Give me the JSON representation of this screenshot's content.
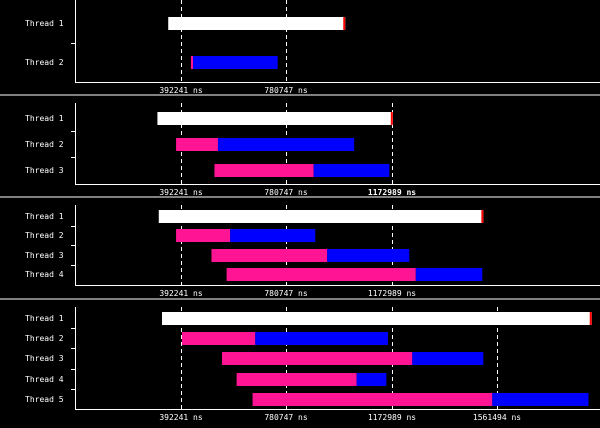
{
  "colors": {
    "background": "#000000",
    "axis": "#ffffff",
    "main_thread_bar": "#ffffff",
    "pink_segment": "#ff1493",
    "blue_segment": "#0000ff",
    "end_marker": "#ff0000",
    "gridline": "#ffffff"
  },
  "chart_data": [
    {
      "type": "timeline",
      "categories": [
        "Thread 1",
        "Thread 2"
      ],
      "x_ticks": [
        {
          "value": 392241,
          "label": "392241 ns",
          "bold": false
        },
        {
          "value": 780747,
          "label": "780747 ns",
          "bold": false
        }
      ],
      "bars": [
        {
          "thread": "Thread 1",
          "start": 345000,
          "end": 1000000,
          "pink_until": null,
          "end_marker": true
        },
        {
          "thread": "Thread 2",
          "start": 429000,
          "end": 750000,
          "pink_until": 437000,
          "end_marker": false
        }
      ]
    },
    {
      "type": "timeline",
      "categories": [
        "Thread 1",
        "Thread 2",
        "Thread 3"
      ],
      "x_ticks": [
        {
          "value": 392241,
          "label": "392241 ns",
          "bold": false
        },
        {
          "value": 780747,
          "label": "780747 ns",
          "bold": false
        },
        {
          "value": 1172989,
          "label": "1172989 ns",
          "bold": true
        }
      ],
      "bars": [
        {
          "thread": "Thread 1",
          "start": 305000,
          "end": 1176000,
          "pink_until": null,
          "end_marker": true
        },
        {
          "thread": "Thread 2",
          "start": 374000,
          "end": 1033000,
          "pink_until": 529000,
          "end_marker": false
        },
        {
          "thread": "Thread 3",
          "start": 516000,
          "end": 1163000,
          "pink_until": 883000,
          "end_marker": false
        }
      ]
    },
    {
      "type": "timeline",
      "categories": [
        "Thread 1",
        "Thread 2",
        "Thread 3",
        "Thread 4"
      ],
      "x_ticks": [
        {
          "value": 392241,
          "label": "392241 ns",
          "bold": false
        },
        {
          "value": 780747,
          "label": "780747 ns",
          "bold": false
        },
        {
          "value": 1172989,
          "label": "1172989 ns",
          "bold": false
        }
      ],
      "bars": [
        {
          "thread": "Thread 1",
          "start": 310000,
          "end": 1511000,
          "pink_until": null,
          "end_marker": true
        },
        {
          "thread": "Thread 2",
          "start": 374000,
          "end": 889000,
          "pink_until": 574000,
          "end_marker": false
        },
        {
          "thread": "Thread 3",
          "start": 505000,
          "end": 1237000,
          "pink_until": 933000,
          "end_marker": false
        },
        {
          "thread": "Thread 4",
          "start": 561000,
          "end": 1507000,
          "pink_until": 1261000,
          "end_marker": false
        }
      ]
    },
    {
      "type": "timeline",
      "categories": [
        "Thread 1",
        "Thread 2",
        "Thread 3",
        "Thread 4",
        "Thread 5"
      ],
      "x_ticks": [
        {
          "value": 392241,
          "label": "392241 ns",
          "bold": false
        },
        {
          "value": 780747,
          "label": "780747 ns",
          "bold": false
        },
        {
          "value": 1172989,
          "label": "1172989 ns",
          "bold": false
        },
        {
          "value": 1561494,
          "label": "1561494 ns",
          "bold": false
        }
      ],
      "bars": [
        {
          "thread": "Thread 1",
          "start": 322000,
          "end": 1912000,
          "pink_until": null,
          "end_marker": true
        },
        {
          "thread": "Thread 2",
          "start": 396000,
          "end": 1158000,
          "pink_until": 667000,
          "end_marker": false
        },
        {
          "thread": "Thread 3",
          "start": 544000,
          "end": 1511000,
          "pink_until": 1248000,
          "end_marker": false
        },
        {
          "thread": "Thread 4",
          "start": 598000,
          "end": 1152000,
          "pink_until": 1042000,
          "end_marker": false
        },
        {
          "thread": "Thread 5",
          "start": 657000,
          "end": 1900000,
          "pink_until": 1544000,
          "end_marker": false
        }
      ]
    }
  ]
}
